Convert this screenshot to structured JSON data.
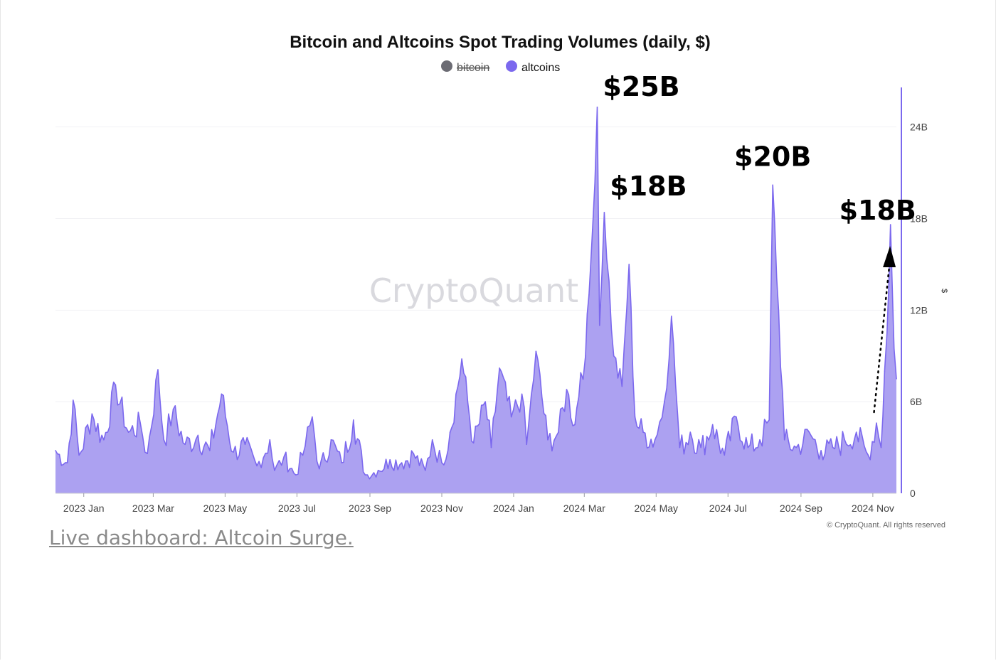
{
  "chart_data": {
    "type": "area",
    "title": "Bitcoin and Altcoins Spot Trading Volumes (daily, $)",
    "xlabel": "",
    "ylabel": "$",
    "ylim": [
      0,
      26.5
    ],
    "y_unit": "billions USD",
    "y_ticks": [
      "0",
      "6B",
      "12B",
      "18B",
      "24B"
    ],
    "y_tick_values": [
      0,
      6,
      12,
      18,
      24
    ],
    "x_tick_labels": [
      "2023 Jan",
      "2023 Mar",
      "2023 May",
      "2023 Jul",
      "2023 Sep",
      "2023 Nov",
      "2024 Jan",
      "2024 Mar",
      "2024 May",
      "2024 Jul",
      "2024 Sep",
      "2024 Nov"
    ],
    "x_tick_dates": [
      "2023-01-01",
      "2023-03-01",
      "2023-05-01",
      "2023-07-01",
      "2023-09-01",
      "2023-11-01",
      "2024-01-01",
      "2024-03-01",
      "2024-05-01",
      "2024-07-01",
      "2024-09-01",
      "2024-11-01"
    ],
    "x_range": [
      "2022-12-08",
      "2024-11-21"
    ],
    "legend": [
      {
        "name": "bitcoin",
        "color": "#6b6b73",
        "hidden": true
      },
      {
        "name": "altcoins",
        "color": "#7b68ee",
        "hidden": false
      }
    ],
    "legend_position": "top-center",
    "grid": true,
    "series": [
      {
        "name": "altcoins",
        "color": "#7b68ee",
        "fill": "#a89cf0",
        "x": [
          "2022-12-08",
          "2022-12-18",
          "2022-12-23",
          "2022-12-28",
          "2023-01-08",
          "2023-01-18",
          "2023-01-28",
          "2023-02-08",
          "2023-02-18",
          "2023-02-24",
          "2023-03-05",
          "2023-03-10",
          "2023-03-18",
          "2023-03-28",
          "2023-04-08",
          "2023-04-18",
          "2023-04-28",
          "2023-05-08",
          "2023-05-18",
          "2023-05-28",
          "2023-06-08",
          "2023-06-12",
          "2023-06-20",
          "2023-06-30",
          "2023-07-08",
          "2023-07-14",
          "2023-07-20",
          "2023-07-30",
          "2023-08-08",
          "2023-08-18",
          "2023-08-28",
          "2023-09-08",
          "2023-09-18",
          "2023-09-28",
          "2023-10-08",
          "2023-10-18",
          "2023-10-24",
          "2023-11-01",
          "2023-11-08",
          "2023-11-18",
          "2023-11-28",
          "2023-12-08",
          "2023-12-13",
          "2023-12-20",
          "2023-12-30",
          "2024-01-08",
          "2024-01-12",
          "2024-01-20",
          "2024-01-30",
          "2024-02-08",
          "2024-02-15",
          "2024-02-22",
          "2024-02-27",
          "2024-03-02",
          "2024-03-05",
          "2024-03-08",
          "2024-03-12",
          "2024-03-14",
          "2024-03-18",
          "2024-03-26",
          "2024-04-02",
          "2024-04-08",
          "2024-04-13",
          "2024-04-20",
          "2024-04-30",
          "2024-05-08",
          "2024-05-14",
          "2024-05-21",
          "2024-05-30",
          "2024-06-08",
          "2024-06-18",
          "2024-06-28",
          "2024-07-08",
          "2024-07-18",
          "2024-07-28",
          "2024-08-05",
          "2024-08-08",
          "2024-08-18",
          "2024-08-28",
          "2024-09-08",
          "2024-09-18",
          "2024-09-28",
          "2024-10-08",
          "2024-10-18",
          "2024-10-28",
          "2024-11-04",
          "2024-11-08",
          "2024-11-11",
          "2024-11-13",
          "2024-11-16",
          "2024-11-19",
          "2024-11-21"
        ],
        "values": [
          2.8,
          2.0,
          6.1,
          2.5,
          5.2,
          3.5,
          7.1,
          4.0,
          4.6,
          2.6,
          8.1,
          3.5,
          5.5,
          3.2,
          3.8,
          2.8,
          6.5,
          2.7,
          3.2,
          1.8,
          3.5,
          1.5,
          2.4,
          1.2,
          3.1,
          5.0,
          1.6,
          3.5,
          2.0,
          4.8,
          1.2,
          1.5,
          2.2,
          2.0,
          2.6,
          1.5,
          3.5,
          2.0,
          4.0,
          8.8,
          3.3,
          6.0,
          3.0,
          8.2,
          5.0,
          6.5,
          3.2,
          9.3,
          3.5,
          4.0,
          6.8,
          4.5,
          7.9,
          9.0,
          13.0,
          17.3,
          25.3,
          11.0,
          18.4,
          9.0,
          7.0,
          15.0,
          5.0,
          4.0,
          3.5,
          6.0,
          11.6,
          3.0,
          4.0,
          3.0,
          4.5,
          2.5,
          5.0,
          3.0,
          3.5,
          4.8,
          20.2,
          3.5,
          3.0,
          4.0,
          2.8,
          3.0,
          3.5,
          4.0,
          2.5,
          4.6,
          3.0,
          8.0,
          10.5,
          17.6,
          9.5,
          7.5
        ]
      }
    ],
    "annotations": [
      {
        "text": "$25B",
        "at": "2024-03-12",
        "value": 25.3
      },
      {
        "text": "$18B",
        "at": "2024-03-18",
        "value": 18.4
      },
      {
        "text": "$20B",
        "at": "2024-08-08",
        "value": 20.2
      },
      {
        "text": "$18B",
        "at": "2024-11-16",
        "value": 17.6
      }
    ],
    "trend_arrow": {
      "from": "2024-11-02",
      "to": "2024-11-15",
      "style": "dotted"
    }
  },
  "watermark": "CryptoQuant",
  "copyright": "© CryptoQuant. All rights reserved",
  "caption": "Live dashboard: Altcoin Surge."
}
